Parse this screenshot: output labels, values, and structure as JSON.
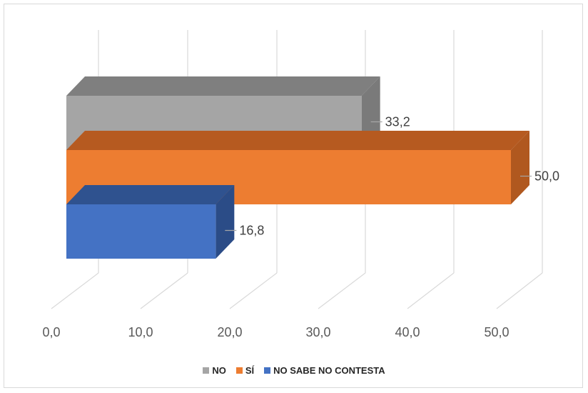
{
  "chart_data": {
    "type": "bar",
    "orientation": "horizontal",
    "three_d": true,
    "title": "",
    "xlabel": "",
    "ylabel": "",
    "xlim": [
      0,
      50
    ],
    "x_ticks": [
      "0,0",
      "10,0",
      "20,0",
      "30,0",
      "40,0",
      "50,0"
    ],
    "grid": true,
    "legend_position": "bottom",
    "series": [
      {
        "name": "NO",
        "value": 33.2,
        "label": "33,2",
        "color": "#a5a5a5",
        "top_color": "#7f7f7f",
        "side_color": "#7a7a7a"
      },
      {
        "name": "SÍ",
        "value": 50.0,
        "label": "50,0",
        "color": "#ed7d31",
        "top_color": "#b65a20",
        "side_color": "#b0581f"
      },
      {
        "name": "NO SABE NO CONTESTA",
        "value": 16.8,
        "label": "16,8",
        "color": "#4472c4",
        "top_color": "#2f528f",
        "side_color": "#2b4c87"
      }
    ]
  }
}
